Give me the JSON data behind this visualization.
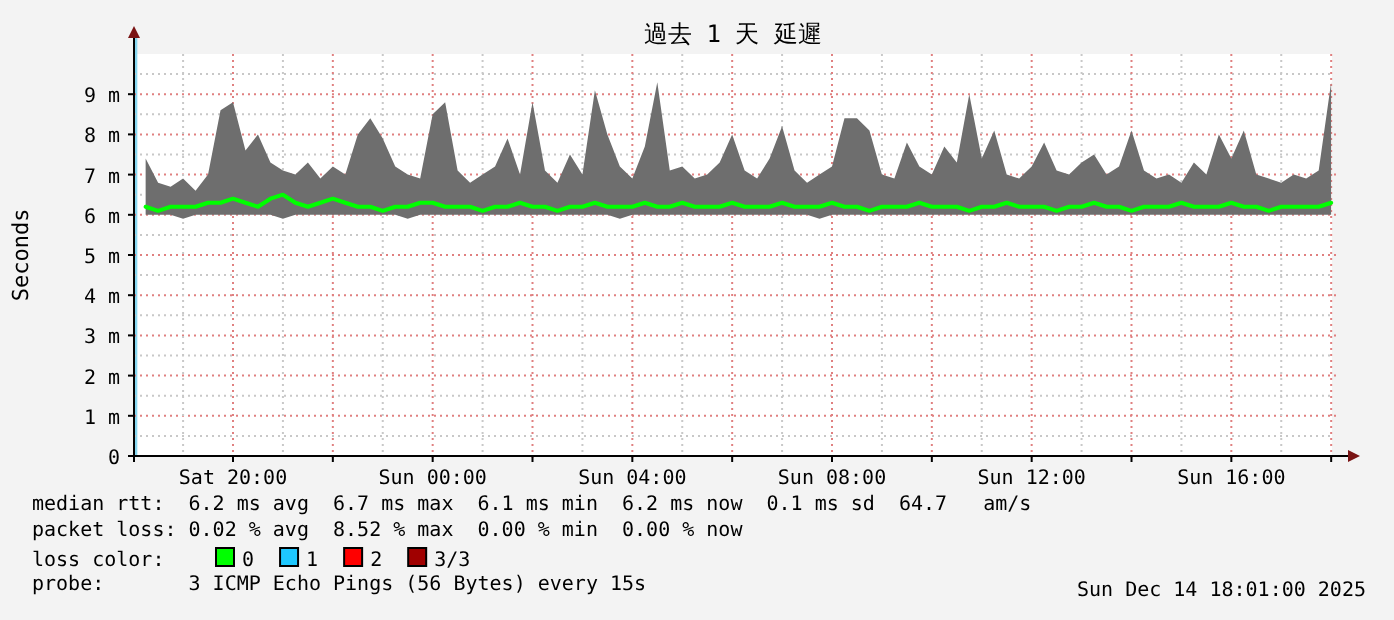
{
  "chart_data": {
    "type": "line",
    "title": "過去 1 天 延遲",
    "ylabel": "Seconds",
    "legend_title": "loss color:",
    "legend": "bottom",
    "grid": true,
    "line_style": "solid",
    "annotations": [
      "median rtt:  6.2 ms avg  6.7 ms max  6.1 ms min  6.2 ms now  0.1 ms sd  64.7   am/s",
      "packet loss: 0.02 % avg  8.52 % max  0.00 % min  0.00 % now",
      "probe:       3 ICMP Echo Pings (56 Bytes) every 15s",
      "Sun Dec 14 18:01:00 2025"
    ],
    "xlim": [
      "2025-12-13T18:01",
      "2025-12-14T18:01"
    ],
    "xticks": [
      {
        "value": "2025-12-13T20:00",
        "label": "Sat 20:00"
      },
      {
        "value": "2025-12-13T22:00",
        "label": null
      },
      {
        "value": "2025-12-14T00:00",
        "label": "Sun 00:00"
      },
      {
        "value": "2025-12-14T02:00",
        "label": null
      },
      {
        "value": "2025-12-14T04:00",
        "label": "Sun 04:00"
      },
      {
        "value": "2025-12-14T06:00",
        "label": null
      },
      {
        "value": "2025-12-14T08:00",
        "label": "Sun 08:00"
      },
      {
        "value": "2025-12-14T10:00",
        "label": null
      },
      {
        "value": "2025-12-14T12:00",
        "label": "Sun 12:00"
      },
      {
        "value": "2025-12-14T14:00",
        "label": null
      },
      {
        "value": "2025-12-14T16:00",
        "label": "Sun 16:00"
      },
      {
        "value": "2025-12-14T18:00",
        "label": null
      }
    ],
    "ylim": [
      0,
      10
    ],
    "yticks": [
      0,
      {
        "value": 1,
        "label": "1 m"
      },
      {
        "value": 2,
        "label": "2 m"
      },
      {
        "value": 3,
        "label": "3 m"
      },
      {
        "value": 4,
        "label": "4 m"
      },
      {
        "value": 5,
        "label": "5 m"
      },
      {
        "value": 6,
        "label": "6 m"
      },
      {
        "value": 7,
        "label": "7 m"
      },
      {
        "value": 8,
        "label": "8 m"
      },
      {
        "value": 9,
        "label": "9 m"
      }
    ],
    "bands": [
      {
        "axis": "x",
        "from": "2025-12-13T18:01",
        "to": "2025-12-13T18:05",
        "color": "#87d7f0"
      }
    ],
    "x": [
      "2025-12-13T18:15",
      "2025-12-13T18:30",
      "2025-12-13T18:45",
      "2025-12-13T19:00",
      "2025-12-13T19:15",
      "2025-12-13T19:30",
      "2025-12-13T19:45",
      "2025-12-13T20:00",
      "2025-12-13T20:15",
      "2025-12-13T20:30",
      "2025-12-13T20:45",
      "2025-12-13T21:00",
      "2025-12-13T21:15",
      "2025-12-13T21:30",
      "2025-12-13T21:45",
      "2025-12-13T22:00",
      "2025-12-13T22:15",
      "2025-12-13T22:30",
      "2025-12-13T22:45",
      "2025-12-13T23:00",
      "2025-12-13T23:15",
      "2025-12-13T23:30",
      "2025-12-13T23:45",
      "2025-12-14T00:00",
      "2025-12-14T00:15",
      "2025-12-14T00:30",
      "2025-12-14T00:45",
      "2025-12-14T01:00",
      "2025-12-14T01:15",
      "2025-12-14T01:30",
      "2025-12-14T01:45",
      "2025-12-14T02:00",
      "2025-12-14T02:15",
      "2025-12-14T02:30",
      "2025-12-14T02:45",
      "2025-12-14T03:00",
      "2025-12-14T03:15",
      "2025-12-14T03:30",
      "2025-12-14T03:45",
      "2025-12-14T04:00",
      "2025-12-14T04:15",
      "2025-12-14T04:30",
      "2025-12-14T04:45",
      "2025-12-14T05:00",
      "2025-12-14T05:15",
      "2025-12-14T05:30",
      "2025-12-14T05:45",
      "2025-12-14T06:00",
      "2025-12-14T06:15",
      "2025-12-14T06:30",
      "2025-12-14T06:45",
      "2025-12-14T07:00",
      "2025-12-14T07:15",
      "2025-12-14T07:30",
      "2025-12-14T07:45",
      "2025-12-14T08:00",
      "2025-12-14T08:15",
      "2025-12-14T08:30",
      "2025-12-14T08:45",
      "2025-12-14T09:00",
      "2025-12-14T09:15",
      "2025-12-14T09:30",
      "2025-12-14T09:45",
      "2025-12-14T10:00",
      "2025-12-14T10:15",
      "2025-12-14T10:30",
      "2025-12-14T10:45",
      "2025-12-14T11:00",
      "2025-12-14T11:15",
      "2025-12-14T11:30",
      "2025-12-14T11:45",
      "2025-12-14T12:00",
      "2025-12-14T12:15",
      "2025-12-14T12:30",
      "2025-12-14T12:45",
      "2025-12-14T13:00",
      "2025-12-14T13:15",
      "2025-12-14T13:30",
      "2025-12-14T13:45",
      "2025-12-14T14:00",
      "2025-12-14T14:15",
      "2025-12-14T14:30",
      "2025-12-14T14:45",
      "2025-12-14T15:00",
      "2025-12-14T15:15",
      "2025-12-14T15:30",
      "2025-12-14T15:45",
      "2025-12-14T16:00",
      "2025-12-14T16:15",
      "2025-12-14T16:30",
      "2025-12-14T16:45",
      "2025-12-14T17:00",
      "2025-12-14T17:15",
      "2025-12-14T17:30",
      "2025-12-14T17:45",
      "2025-12-14T18:00"
    ],
    "series": [
      {
        "name": "0",
        "color": "#00ff00",
        "values": [
          6.2,
          6.1,
          6.2,
          6.2,
          6.2,
          6.3,
          6.3,
          6.4,
          6.3,
          6.2,
          6.4,
          6.5,
          6.3,
          6.2,
          6.3,
          6.4,
          6.3,
          6.2,
          6.2,
          6.1,
          6.2,
          6.2,
          6.3,
          6.3,
          6.2,
          6.2,
          6.2,
          6.1,
          6.2,
          6.2,
          6.3,
          6.2,
          6.2,
          6.1,
          6.2,
          6.2,
          6.3,
          6.2,
          6.2,
          6.2,
          6.3,
          6.2,
          6.2,
          6.3,
          6.2,
          6.2,
          6.2,
          6.3,
          6.2,
          6.2,
          6.2,
          6.3,
          6.2,
          6.2,
          6.2,
          6.3,
          6.2,
          6.2,
          6.1,
          6.2,
          6.2,
          6.2,
          6.3,
          6.2,
          6.2,
          6.2,
          6.1,
          6.2,
          6.2,
          6.3,
          6.2,
          6.2,
          6.2,
          6.1,
          6.2,
          6.2,
          6.3,
          6.2,
          6.2,
          6.1,
          6.2,
          6.2,
          6.2,
          6.3,
          6.2,
          6.2,
          6.2,
          6.3,
          6.2,
          6.2,
          6.1,
          6.2,
          6.2,
          6.2,
          6.2,
          6.3
        ],
        "lower": [
          6.0,
          6.0,
          6.0,
          5.9,
          6.0,
          6.0,
          6.0,
          6.0,
          6.0,
          6.0,
          6.0,
          5.9,
          6.0,
          6.0,
          6.0,
          6.0,
          6.0,
          6.0,
          6.0,
          6.0,
          6.0,
          5.9,
          6.0,
          6.0,
          6.0,
          6.0,
          6.0,
          6.0,
          6.0,
          6.0,
          6.0,
          6.0,
          6.0,
          6.0,
          6.0,
          6.0,
          6.0,
          6.0,
          5.9,
          6.0,
          6.0,
          6.0,
          6.0,
          6.0,
          6.0,
          6.0,
          6.0,
          6.0,
          6.0,
          6.0,
          6.0,
          6.0,
          6.0,
          6.0,
          5.9,
          6.0,
          6.0,
          6.0,
          6.0,
          6.0,
          6.0,
          6.0,
          6.0,
          6.0,
          6.0,
          6.0,
          6.0,
          6.0,
          6.0,
          6.0,
          6.0,
          6.0,
          6.0,
          6.0,
          6.0,
          6.0,
          6.0,
          6.0,
          6.0,
          6.0,
          6.0,
          6.0,
          6.0,
          6.0,
          6.0,
          6.0,
          6.0,
          6.0,
          6.0,
          6.0,
          6.0,
          6.0,
          6.0,
          6.0,
          6.0,
          6.0
        ],
        "upper": [
          7.4,
          6.8,
          6.7,
          6.9,
          6.6,
          7.0,
          8.6,
          8.8,
          7.6,
          8.0,
          7.3,
          7.1,
          7.0,
          7.3,
          6.9,
          7.2,
          7.0,
          8.0,
          8.4,
          7.9,
          7.2,
          7.0,
          6.9,
          8.5,
          8.8,
          7.1,
          6.8,
          7.0,
          7.2,
          7.9,
          7.0,
          8.8,
          7.1,
          6.8,
          7.5,
          7.0,
          9.1,
          8.0,
          7.2,
          6.9,
          7.7,
          9.3,
          7.1,
          7.2,
          6.9,
          7.0,
          7.3,
          8.0,
          7.1,
          6.9,
          7.4,
          8.2,
          7.1,
          6.8,
          7.0,
          7.2,
          8.4,
          8.4,
          8.1,
          7.0,
          6.9,
          7.8,
          7.2,
          7.0,
          7.7,
          7.3,
          9.0,
          7.4,
          8.1,
          7.0,
          6.9,
          7.2,
          7.8,
          7.1,
          7.0,
          7.3,
          7.5,
          7.0,
          7.2,
          8.1,
          7.1,
          6.9,
          7.0,
          6.8,
          7.3,
          7.0,
          8.0,
          7.4,
          8.1,
          7.0,
          6.9,
          6.8,
          7.0,
          6.9,
          7.1,
          9.3
        ]
      },
      {
        "name": "1",
        "color": "#1ec8ff",
        "values": [
          null,
          null,
          null,
          null,
          null,
          null,
          null,
          null,
          null,
          null,
          null,
          null,
          null,
          null,
          null,
          null,
          null,
          null,
          null,
          null,
          null,
          null,
          null,
          null,
          null,
          null,
          null,
          null,
          null,
          null,
          null,
          null,
          null,
          null,
          null,
          null,
          null,
          null,
          null,
          null,
          null,
          null,
          null,
          null,
          null,
          null,
          null,
          null,
          null,
          null,
          null,
          null,
          null,
          null,
          null,
          null,
          null,
          null,
          null,
          null,
          null,
          null,
          null,
          null,
          null,
          null,
          null,
          null,
          null,
          null,
          null,
          null,
          null,
          null,
          null,
          null,
          null,
          null,
          null,
          null,
          null,
          null,
          null,
          null,
          null,
          null,
          null,
          null,
          null,
          null,
          null,
          null,
          null,
          null,
          null,
          null
        ]
      },
      {
        "name": "2",
        "color": "#ff0000",
        "values": [
          null,
          null,
          null,
          null,
          null,
          null,
          null,
          null,
          null,
          null,
          null,
          null,
          null,
          null,
          null,
          null,
          null,
          null,
          null,
          null,
          null,
          null,
          null,
          null,
          null,
          null,
          null,
          null,
          null,
          null,
          null,
          null,
          null,
          null,
          null,
          null,
          null,
          null,
          null,
          null,
          null,
          null,
          null,
          null,
          null,
          null,
          null,
          null,
          null,
          null,
          null,
          null,
          null,
          null,
          null,
          null,
          null,
          null,
          null,
          null,
          null,
          null,
          null,
          null,
          null,
          null,
          null,
          null,
          null,
          null,
          null,
          null,
          null,
          null,
          null,
          null,
          null,
          null,
          null,
          null,
          null,
          null,
          null,
          null,
          null,
          null,
          null,
          null,
          null,
          null,
          null,
          null,
          null,
          null,
          null,
          null
        ]
      },
      {
        "name": "3/3",
        "color": "#a00000",
        "values": [
          null,
          null,
          null,
          null,
          null,
          null,
          null,
          null,
          null,
          null,
          null,
          null,
          null,
          null,
          null,
          null,
          null,
          null,
          null,
          null,
          null,
          null,
          null,
          null,
          null,
          null,
          null,
          null,
          null,
          null,
          null,
          null,
          null,
          null,
          null,
          null,
          null,
          null,
          null,
          null,
          null,
          null,
          null,
          null,
          null,
          null,
          null,
          null,
          null,
          null,
          null,
          null,
          null,
          null,
          null,
          null,
          null,
          null,
          null,
          null,
          null,
          null,
          null,
          null,
          null,
          null,
          null,
          null,
          null,
          null,
          null,
          null,
          null,
          null,
          null,
          null,
          null,
          null,
          null,
          null,
          null,
          null,
          null,
          null,
          null,
          null,
          null,
          null,
          null,
          null,
          null,
          null,
          null,
          null,
          null,
          null
        ]
      }
    ]
  }
}
